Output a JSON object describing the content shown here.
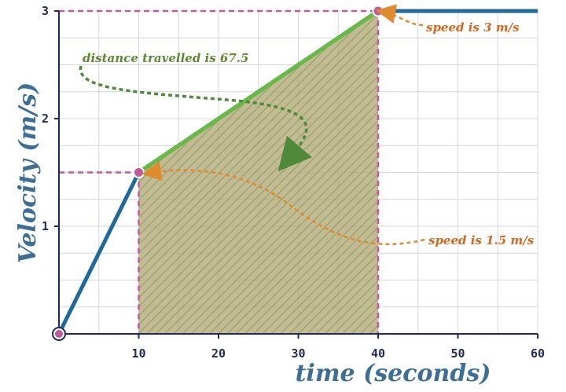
{
  "chart_data": {
    "type": "line",
    "xlabel": "time (seconds)",
    "ylabel": "Velocity (m/s)",
    "xlim": [
      0,
      60
    ],
    "ylim": [
      0,
      3
    ],
    "x_ticks": [
      "10",
      "20",
      "30",
      "40",
      "50",
      "60"
    ],
    "y_ticks": [
      "1",
      "2",
      "3"
    ],
    "grid": true,
    "series": [
      {
        "color": "#1f6a9a",
        "points": [
          [
            0,
            0
          ],
          [
            10,
            1.5
          ],
          [
            40,
            3
          ],
          [
            60,
            3
          ]
        ]
      }
    ],
    "highlight_segment": {
      "x": [
        10,
        40
      ],
      "y": [
        1.5,
        3
      ],
      "color": "#67bb45"
    },
    "shaded_area": {
      "x_from": 10,
      "x_to": 40,
      "color": "#9aa46a"
    },
    "marked_points": [
      [
        0,
        0
      ],
      [
        10,
        1.5
      ],
      [
        40,
        3
      ]
    ],
    "annotations": [
      {
        "text": "speed is 3 m/s",
        "color": "#d9651c"
      },
      {
        "text": "distance travelled is 67.5",
        "color": "#5b8a2f"
      },
      {
        "text": "speed is 1.5 m/s",
        "color": "#d9651c"
      }
    ]
  }
}
